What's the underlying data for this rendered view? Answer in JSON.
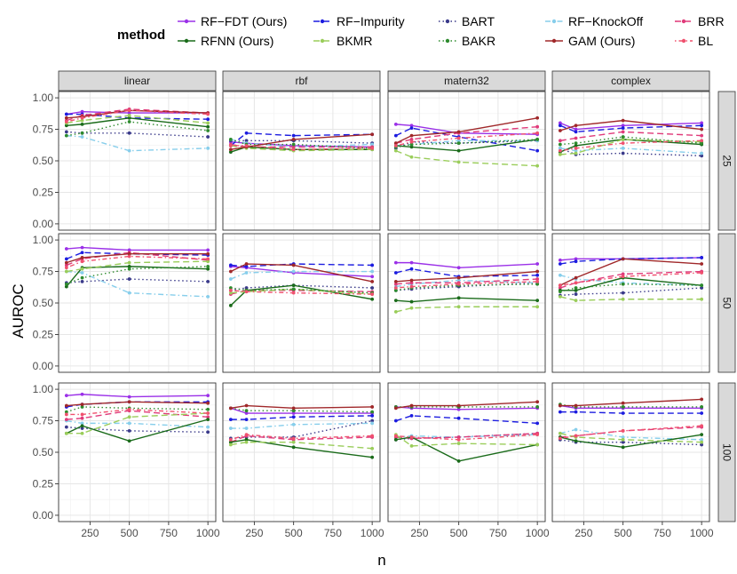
{
  "chart_data": {
    "type": "line",
    "facet_columns": [
      "linear",
      "rbf",
      "matern32",
      "complex"
    ],
    "facet_rows": [
      "25",
      "50",
      "100"
    ],
    "x": [
      100,
      200,
      500,
      1000
    ],
    "xlabel": "n",
    "ylabel": "AUROC",
    "xticks": [
      250,
      500,
      750,
      1000
    ],
    "xtick_labels": [
      "250",
      "500",
      "750",
      "1000"
    ],
    "yticks": [
      0,
      0.25,
      0.5,
      0.75,
      1
    ],
    "ytick_labels": [
      "0.00",
      "0.25",
      "0.50",
      "0.75",
      "1.00"
    ],
    "xlim": [
      50,
      1050
    ],
    "ylim": [
      -0.05,
      1.05
    ],
    "legend": {
      "title": "method",
      "position": "top",
      "entries": [
        {
          "name": "RF-FDT (Ours)",
          "label": "RF−FDT (Ours)",
          "color": "#9B30E8",
          "dash": "solid"
        },
        {
          "name": "RF-Impurity",
          "label": "RF−Impurity",
          "color": "#1C1CE0",
          "dash": "longdash"
        },
        {
          "name": "BART",
          "label": "BART",
          "color": "#3A3A8A",
          "dash": "dotted"
        },
        {
          "name": "RF-KnockOff",
          "label": "RF−KnockOff",
          "color": "#87CEEB",
          "dash": "dashdot"
        },
        {
          "name": "BRR",
          "label": "BRR",
          "color": "#E03A7A",
          "dash": "longdash"
        },
        {
          "name": "RFNN (Ours)",
          "label": "RFNN (Ours)",
          "color": "#1A6B1A",
          "dash": "solid"
        },
        {
          "name": "BKMR",
          "label": "BKMR",
          "color": "#9ACD5A",
          "dash": "longdash"
        },
        {
          "name": "BAKR",
          "label": "BAKR",
          "color": "#2E8B2E",
          "dash": "dotted"
        },
        {
          "name": "GAM (Ours)",
          "label": "GAM (Ours)",
          "color": "#A0282A",
          "dash": "solid"
        },
        {
          "name": "BL",
          "label": "BL",
          "color": "#F0506E",
          "dash": "dotdash"
        }
      ]
    },
    "panels": [
      {
        "col": "linear",
        "row": "25",
        "series": {
          "RF-FDT (Ours)": [
            0.87,
            0.89,
            0.88,
            0.88
          ],
          "RF-Impurity": [
            0.87,
            0.87,
            0.84,
            0.83
          ],
          "BART": [
            0.73,
            0.72,
            0.72,
            0.69
          ],
          "RF-KnockOff": [
            0.7,
            0.69,
            0.58,
            0.6
          ],
          "BRR": [
            0.82,
            0.86,
            0.91,
            0.88
          ],
          "RFNN (Ours)": [
            0.78,
            0.79,
            0.84,
            0.77
          ],
          "BKMR": [
            0.8,
            0.82,
            0.86,
            0.8
          ],
          "BAKR": [
            0.7,
            0.72,
            0.81,
            0.74
          ],
          "GAM (Ours)": [
            0.84,
            0.85,
            0.9,
            0.88
          ],
          "BL": [
            0.81,
            0.84,
            0.9,
            0.87
          ]
        }
      },
      {
        "col": "rbf",
        "row": "25",
        "series": {
          "RF-FDT (Ours)": [
            0.65,
            0.64,
            0.62,
            0.61
          ],
          "RF-Impurity": [
            0.62,
            0.72,
            0.7,
            0.71
          ],
          "BART": [
            0.66,
            0.66,
            0.66,
            0.64
          ],
          "RF-KnockOff": [
            0.67,
            0.64,
            0.61,
            0.63
          ],
          "BRR": [
            0.63,
            0.61,
            0.61,
            0.61
          ],
          "RFNN (Ours)": [
            0.57,
            0.61,
            0.59,
            0.59
          ],
          "BKMR": [
            0.62,
            0.6,
            0.58,
            0.59
          ],
          "BAKR": [
            0.67,
            0.63,
            0.63,
            0.6
          ],
          "GAM (Ours)": [
            0.59,
            0.61,
            0.67,
            0.71
          ],
          "BL": [
            0.62,
            0.62,
            0.59,
            0.6
          ]
        }
      },
      {
        "col": "matern32",
        "row": "25",
        "series": {
          "RF-FDT (Ours)": [
            0.79,
            0.78,
            0.72,
            0.71
          ],
          "RF-Impurity": [
            0.7,
            0.76,
            0.69,
            0.58
          ],
          "BART": [
            0.6,
            0.65,
            0.64,
            0.66
          ],
          "RF-KnockOff": [
            0.62,
            0.63,
            0.66,
            0.66
          ],
          "BRR": [
            0.64,
            0.67,
            0.72,
            0.77
          ],
          "RFNN (Ours)": [
            0.62,
            0.61,
            0.58,
            0.67
          ],
          "BKMR": [
            0.58,
            0.53,
            0.49,
            0.46
          ],
          "BAKR": [
            0.61,
            0.63,
            0.64,
            0.67
          ],
          "GAM (Ours)": [
            0.64,
            0.7,
            0.73,
            0.84
          ],
          "BL": [
            0.62,
            0.65,
            0.68,
            0.72
          ]
        }
      },
      {
        "col": "complex",
        "row": "25",
        "series": {
          "RF-FDT (Ours)": [
            0.8,
            0.75,
            0.78,
            0.8
          ],
          "RF-Impurity": [
            0.78,
            0.73,
            0.76,
            0.78
          ],
          "BART": [
            0.6,
            0.55,
            0.56,
            0.54
          ],
          "RF-KnockOff": [
            0.6,
            0.58,
            0.6,
            0.56
          ],
          "BRR": [
            0.66,
            0.68,
            0.73,
            0.7
          ],
          "RFNN (Ours)": [
            0.57,
            0.62,
            0.67,
            0.63
          ],
          "BKMR": [
            0.55,
            0.56,
            0.67,
            0.65
          ],
          "BAKR": [
            0.63,
            0.64,
            0.69,
            0.64
          ],
          "GAM (Ours)": [
            0.74,
            0.78,
            0.82,
            0.75
          ],
          "BL": [
            0.58,
            0.6,
            0.64,
            0.66
          ]
        }
      },
      {
        "col": "linear",
        "row": "50",
        "series": {
          "RF-FDT (Ours)": [
            0.93,
            0.94,
            0.92,
            0.92
          ],
          "RF-Impurity": [
            0.85,
            0.9,
            0.89,
            0.88
          ],
          "BART": [
            0.66,
            0.67,
            0.69,
            0.67
          ],
          "RF-KnockOff": [
            0.75,
            0.74,
            0.58,
            0.55
          ],
          "BRR": [
            0.8,
            0.85,
            0.9,
            0.84
          ],
          "RFNN (Ours)": [
            0.63,
            0.78,
            0.79,
            0.77
          ],
          "BKMR": [
            0.75,
            0.77,
            0.82,
            0.83
          ],
          "BAKR": [
            0.65,
            0.7,
            0.77,
            0.79
          ],
          "GAM (Ours)": [
            0.82,
            0.86,
            0.89,
            0.89
          ],
          "BL": [
            0.78,
            0.83,
            0.87,
            0.85
          ]
        }
      },
      {
        "col": "rbf",
        "row": "50",
        "series": {
          "RF-FDT (Ours)": [
            0.79,
            0.78,
            0.74,
            0.71
          ],
          "RF-Impurity": [
            0.8,
            0.79,
            0.81,
            0.8
          ],
          "BART": [
            0.6,
            0.62,
            0.64,
            0.62
          ],
          "RF-KnockOff": [
            0.69,
            0.74,
            0.75,
            0.75
          ],
          "BRR": [
            0.57,
            0.6,
            0.6,
            0.59
          ],
          "RFNN (Ours)": [
            0.48,
            0.6,
            0.64,
            0.53
          ],
          "BKMR": [
            0.58,
            0.59,
            0.61,
            0.57
          ],
          "BAKR": [
            0.62,
            0.6,
            0.61,
            0.58
          ],
          "GAM (Ours)": [
            0.75,
            0.81,
            0.8,
            0.67
          ],
          "BL": [
            0.6,
            0.59,
            0.58,
            0.57
          ]
        }
      },
      {
        "col": "matern32",
        "row": "50",
        "series": {
          "RF-FDT (Ours)": [
            0.82,
            0.82,
            0.78,
            0.81
          ],
          "RF-Impurity": [
            0.74,
            0.77,
            0.71,
            0.72
          ],
          "BART": [
            0.6,
            0.61,
            0.63,
            0.66
          ],
          "RF-KnockOff": [
            0.63,
            0.65,
            0.68,
            0.66
          ],
          "BRR": [
            0.65,
            0.66,
            0.66,
            0.69
          ],
          "RFNN (Ours)": [
            0.52,
            0.51,
            0.54,
            0.52
          ],
          "BKMR": [
            0.43,
            0.46,
            0.47,
            0.47
          ],
          "BAKR": [
            0.6,
            0.62,
            0.64,
            0.65
          ],
          "GAM (Ours)": [
            0.67,
            0.68,
            0.7,
            0.75
          ],
          "BL": [
            0.62,
            0.63,
            0.65,
            0.67
          ]
        }
      },
      {
        "col": "complex",
        "row": "50",
        "series": {
          "RF-FDT (Ours)": [
            0.84,
            0.85,
            0.85,
            0.86
          ],
          "RF-Impurity": [
            0.81,
            0.83,
            0.85,
            0.86
          ],
          "BART": [
            0.56,
            0.57,
            0.58,
            0.62
          ],
          "RF-KnockOff": [
            0.72,
            0.69,
            0.66,
            0.64
          ],
          "BRR": [
            0.62,
            0.66,
            0.73,
            0.75
          ],
          "RFNN (Ours)": [
            0.6,
            0.6,
            0.7,
            0.64
          ],
          "BKMR": [
            0.55,
            0.52,
            0.53,
            0.53
          ],
          "BAKR": [
            0.59,
            0.62,
            0.65,
            0.64
          ],
          "GAM (Ours)": [
            0.64,
            0.7,
            0.85,
            0.81
          ],
          "BL": [
            0.64,
            0.66,
            0.71,
            0.74
          ]
        }
      },
      {
        "col": "linear",
        "row": "100",
        "series": {
          "RF-FDT (Ours)": [
            0.95,
            0.96,
            0.94,
            0.95
          ],
          "RF-Impurity": [
            0.86,
            0.88,
            0.9,
            0.9
          ],
          "BART": [
            0.7,
            0.69,
            0.67,
            0.66
          ],
          "RF-KnockOff": [
            0.75,
            0.73,
            0.73,
            0.7
          ],
          "BRR": [
            0.76,
            0.77,
            0.83,
            0.78
          ],
          "RFNN (Ours)": [
            0.65,
            0.71,
            0.59,
            0.76
          ],
          "BKMR": [
            0.65,
            0.65,
            0.78,
            0.81
          ],
          "BAKR": [
            0.82,
            0.86,
            0.85,
            0.84
          ],
          "GAM (Ours)": [
            0.87,
            0.88,
            0.9,
            0.89
          ],
          "BL": [
            0.8,
            0.8,
            0.84,
            0.81
          ]
        }
      },
      {
        "col": "rbf",
        "row": "100",
        "series": {
          "RF-FDT (Ours)": [
            0.85,
            0.81,
            0.81,
            0.81
          ],
          "RF-Impurity": [
            0.76,
            0.76,
            0.78,
            0.79
          ],
          "BART": [
            0.61,
            0.62,
            0.62,
            0.75
          ],
          "RF-KnockOff": [
            0.69,
            0.69,
            0.72,
            0.73
          ],
          "BRR": [
            0.58,
            0.63,
            0.6,
            0.62
          ],
          "RFNN (Ours)": [
            0.58,
            0.6,
            0.54,
            0.46
          ],
          "BKMR": [
            0.56,
            0.58,
            0.58,
            0.53
          ],
          "BAKR": [
            0.85,
            0.83,
            0.83,
            0.82
          ],
          "GAM (Ours)": [
            0.85,
            0.87,
            0.85,
            0.86
          ],
          "BL": [
            0.6,
            0.64,
            0.61,
            0.63
          ]
        }
      },
      {
        "col": "matern32",
        "row": "100",
        "series": {
          "RF-FDT (Ours)": [
            0.86,
            0.85,
            0.84,
            0.85
          ],
          "RF-Impurity": [
            0.75,
            0.79,
            0.77,
            0.73
          ],
          "BART": [
            0.6,
            0.61,
            0.62,
            0.65
          ],
          "RF-KnockOff": [
            0.62,
            0.63,
            0.62,
            0.64
          ],
          "BRR": [
            0.62,
            0.61,
            0.62,
            0.65
          ],
          "RFNN (Ours)": [
            0.6,
            0.62,
            0.43,
            0.56
          ],
          "BKMR": [
            0.64,
            0.55,
            0.57,
            0.56
          ],
          "BAKR": [
            0.86,
            0.86,
            0.86,
            0.86
          ],
          "GAM (Ours)": [
            0.85,
            0.87,
            0.87,
            0.9
          ],
          "BL": [
            0.63,
            0.62,
            0.6,
            0.64
          ]
        }
      },
      {
        "col": "complex",
        "row": "100",
        "series": {
          "RF-FDT (Ours)": [
            0.87,
            0.85,
            0.85,
            0.85
          ],
          "RF-Impurity": [
            0.82,
            0.82,
            0.81,
            0.81
          ],
          "BART": [
            0.6,
            0.58,
            0.58,
            0.56
          ],
          "RF-KnockOff": [
            0.65,
            0.68,
            0.62,
            0.6
          ],
          "BRR": [
            0.62,
            0.63,
            0.67,
            0.7
          ],
          "RFNN (Ours)": [
            0.62,
            0.59,
            0.54,
            0.64
          ],
          "BKMR": [
            0.65,
            0.62,
            0.6,
            0.58
          ],
          "BAKR": [
            0.88,
            0.86,
            0.86,
            0.86
          ],
          "GAM (Ours)": [
            0.87,
            0.87,
            0.89,
            0.92
          ],
          "BL": [
            0.61,
            0.63,
            0.67,
            0.71
          ]
        }
      }
    ]
  }
}
